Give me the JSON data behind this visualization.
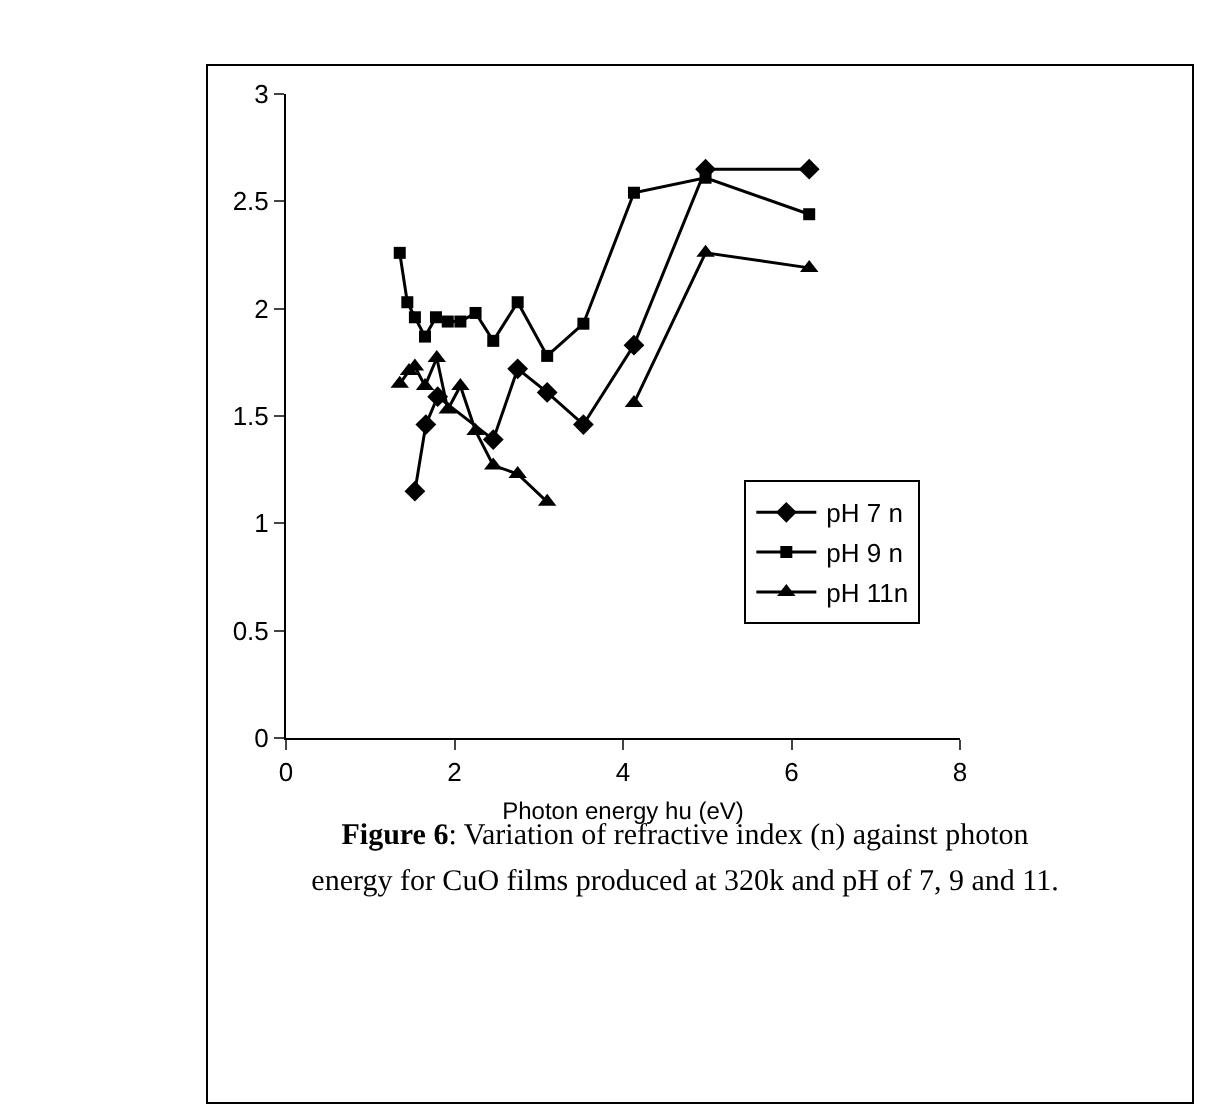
{
  "chart_data": {
    "type": "line",
    "title": "Figure 6",
    "subtitle": ": Variation of refractive index (n) against photon energy for  CuO  films produced at 320k and pH of 7, 9 and 11.",
    "xlabel": "Photon energy hu (eV)",
    "xlim": [
      0,
      8
    ],
    "xticks": [
      0,
      2,
      4,
      6,
      8
    ],
    "ylim": [
      0,
      3
    ],
    "yticks": [
      0,
      0.5,
      1,
      1.5,
      2,
      2.5,
      3
    ],
    "grid": false,
    "legend": "right",
    "line_style": "solid",
    "series": [
      {
        "name": "pH 7 n",
        "color": "#000000",
        "marker": "diamond",
        "x": [
          1.53,
          1.66,
          1.8,
          2.46,
          2.75,
          3.1,
          3.53,
          4.13,
          4.98,
          6.21
        ],
        "values": [
          1.15,
          1.46,
          1.59,
          1.39,
          1.72,
          1.61,
          1.46,
          1.83,
          2.65,
          2.65
        ]
      },
      {
        "name": "pH 9 n",
        "color": "#000000",
        "marker": "square",
        "x": [
          1.35,
          1.44,
          1.53,
          1.65,
          1.78,
          1.92,
          2.07,
          2.25,
          2.46,
          2.75,
          3.1,
          3.53,
          4.13,
          4.98,
          6.21
        ],
        "values": [
          2.26,
          2.03,
          1.96,
          1.87,
          1.96,
          1.94,
          1.94,
          1.98,
          1.85,
          2.03,
          1.78,
          1.93,
          2.54,
          2.61,
          2.44
        ]
      },
      {
        "name": "pH 11n",
        "color": "#000000",
        "marker": "triangle",
        "x": [
          1.35,
          1.46,
          1.53,
          1.65,
          1.79,
          1.92,
          2.07,
          2.25,
          2.46,
          2.75,
          3.1,
          3.6,
          4.13,
          4.98,
          6.21
        ],
        "values": [
          1.65,
          1.71,
          1.73,
          1.64,
          1.77,
          1.53,
          1.64,
          1.43,
          1.27,
          1.23,
          1.1,
          null,
          1.56,
          2.26,
          2.19
        ]
      }
    ]
  }
}
